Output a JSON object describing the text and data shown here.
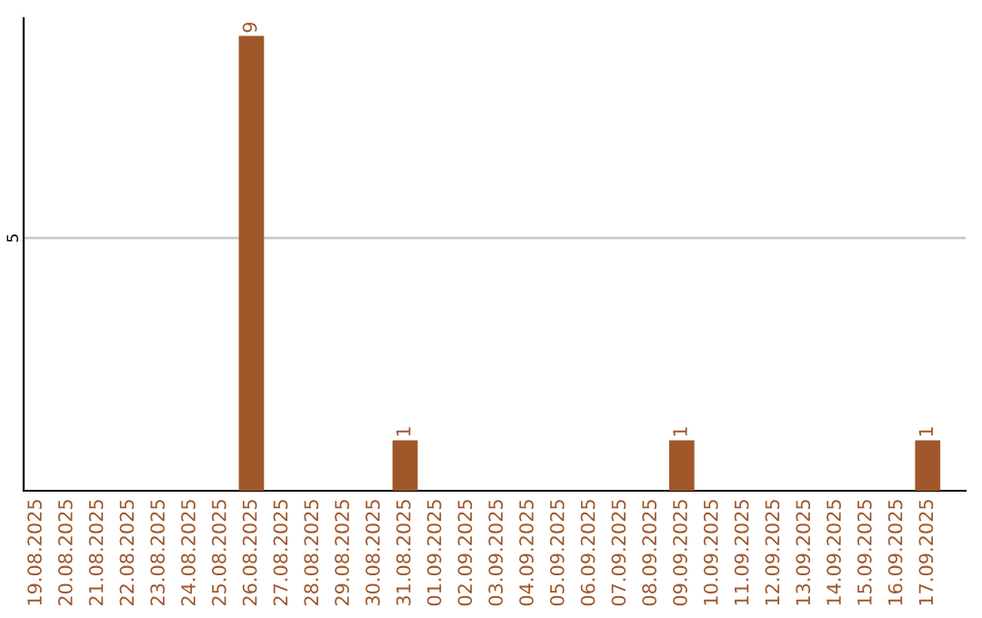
{
  "chart_data": {
    "type": "bar",
    "categories": [
      "19.08.2025",
      "20.08.2025",
      "21.08.2025",
      "22.08.2025",
      "23.08.2025",
      "24.08.2025",
      "25.08.2025",
      "26.08.2025",
      "27.08.2025",
      "28.08.2025",
      "29.08.2025",
      "30.08.2025",
      "31.08.2025",
      "01.09.2025",
      "02.09.2025",
      "03.09.2025",
      "04.09.2025",
      "05.09.2025",
      "06.09.2025",
      "07.09.2025",
      "08.09.2025",
      "09.09.2025",
      "10.09.2025",
      "11.09.2025",
      "12.09.2025",
      "13.09.2025",
      "14.09.2025",
      "15.09.2025",
      "16.09.2025",
      "17.09.2025"
    ],
    "values": [
      0,
      0,
      0,
      0,
      0,
      0,
      0,
      9,
      0,
      0,
      0,
      0,
      1,
      0,
      0,
      0,
      0,
      0,
      0,
      0,
      0,
      1,
      0,
      0,
      0,
      0,
      0,
      0,
      0,
      1
    ],
    "value_labels": [
      null,
      null,
      null,
      null,
      null,
      null,
      null,
      "9",
      null,
      null,
      null,
      null,
      "1",
      null,
      null,
      null,
      null,
      null,
      null,
      null,
      null,
      "1",
      null,
      null,
      null,
      null,
      null,
      null,
      null,
      "1"
    ],
    "color": "#a0572a",
    "ylim": [
      0,
      9.35
    ],
    "yticks": [
      5
    ],
    "grid": "y"
  }
}
